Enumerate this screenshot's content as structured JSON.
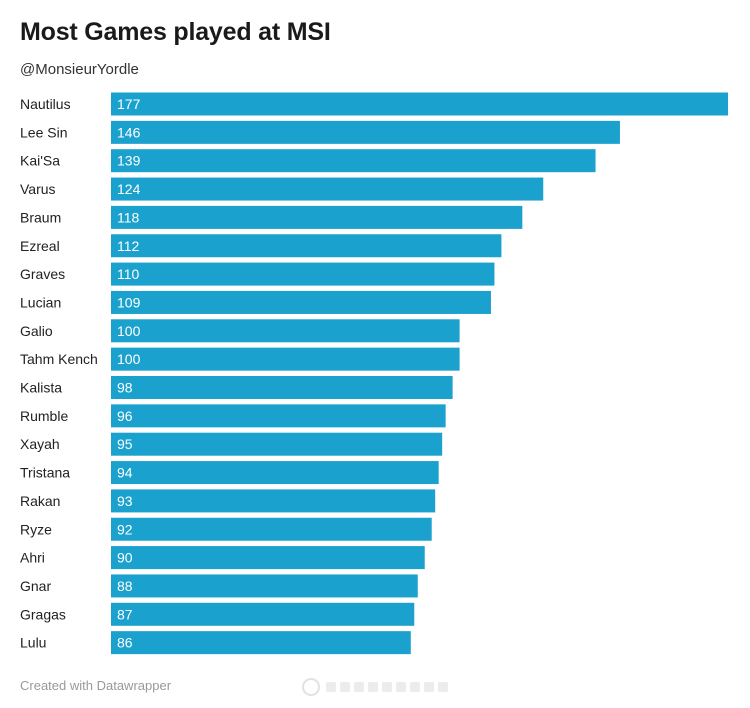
{
  "header": {
    "title": "Most Games played at MSI",
    "subtitle": "@MonsieurYordle"
  },
  "footer": {
    "credit": "Created with Datawrapper"
  },
  "colors": {
    "bar": "#1aa1cd",
    "value_label": "#ffffff",
    "category_label": "#222222"
  },
  "chart_data": {
    "type": "bar",
    "orientation": "horizontal",
    "title": "Most Games played at MSI",
    "subtitle": "@MonsieurYordle",
    "categories": [
      "Nautilus",
      "Lee Sin",
      "Kai'Sa",
      "Varus",
      "Braum",
      "Ezreal",
      "Graves",
      "Lucian",
      "Galio",
      "Tahm Kench",
      "Kalista",
      "Rumble",
      "Xayah",
      "Tristana",
      "Rakan",
      "Ryze",
      "Ahri",
      "Gnar",
      "Gragas",
      "Lulu"
    ],
    "values": [
      177,
      146,
      139,
      124,
      118,
      112,
      110,
      109,
      100,
      100,
      98,
      96,
      95,
      94,
      93,
      92,
      90,
      88,
      87,
      86
    ],
    "value_labels": [
      "177",
      "146",
      "139",
      "124",
      "118",
      "112",
      "110",
      "109",
      "100",
      "100",
      "98",
      "96",
      "95",
      "94",
      "93",
      "92",
      "90",
      "88",
      "87",
      "86"
    ],
    "xlim": [
      0,
      177
    ],
    "grid": false,
    "legend": "none"
  }
}
